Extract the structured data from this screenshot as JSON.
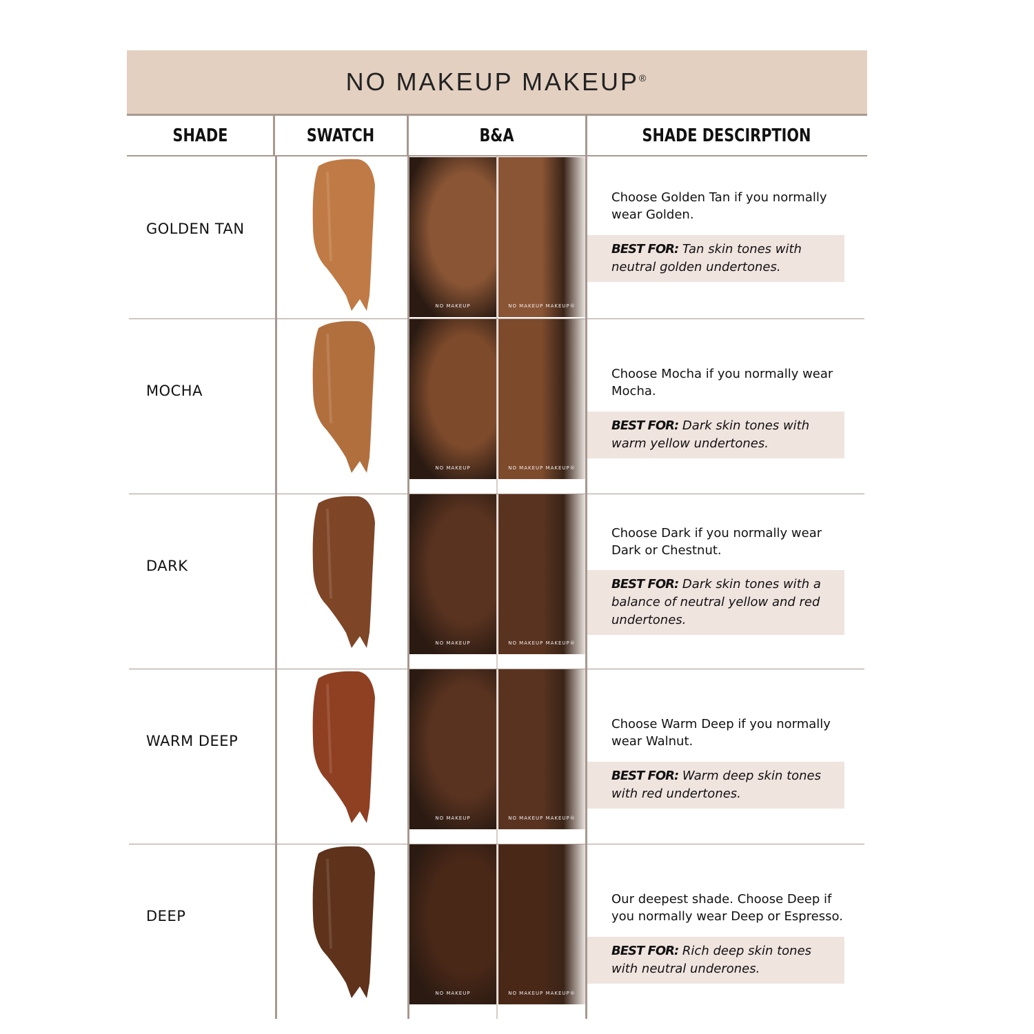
{
  "title": "NO MAKEUP MAKEUP",
  "title_mark": "®",
  "headers": {
    "shade": "SHADE",
    "swatch": "SWATCH",
    "ba": "B&A",
    "description": "SHADE DESCIRPTION"
  },
  "photo_labels": {
    "before": "NO MAKEUP",
    "after": "NO MAKEUP MAKEUP®"
  },
  "best_for_label": "BEST FOR:",
  "rows": [
    {
      "shade": "GOLDEN TAN",
      "swatch_color": "#c07a45",
      "skin": "#8a5535",
      "description": "Choose Golden Tan if you normally wear Golden.",
      "best_for": "Tan skin tones with neutral golden undertones."
    },
    {
      "shade": "MOCHA",
      "swatch_color": "#b26f3e",
      "skin": "#7d4a2c",
      "description": "Choose Mocha if you normally wear Mocha.",
      "best_for": "Dark skin tones with warm yellow undertones."
    },
    {
      "shade": "DARK",
      "swatch_color": "#7e4527",
      "skin": "#5a3320",
      "description": "Choose Dark if you normally wear Dark or Chestnut.",
      "best_for": "Dark skin tones with a balance of neutral yellow and red undertones."
    },
    {
      "shade": "WARM DEEP",
      "swatch_color": "#8f3f22",
      "skin": "#5a3320",
      "description": "Choose Warm Deep if you normally wear Walnut.",
      "best_for": "Warm deep skin tones with red undertones."
    },
    {
      "shade": "DEEP",
      "swatch_color": "#5e321b",
      "skin": "#4a2818",
      "description": "Our deepest shade. Choose Deep if you normally wear Deep or Espresso.",
      "best_for": "Rich deep skin tones with neutral underones."
    }
  ]
}
